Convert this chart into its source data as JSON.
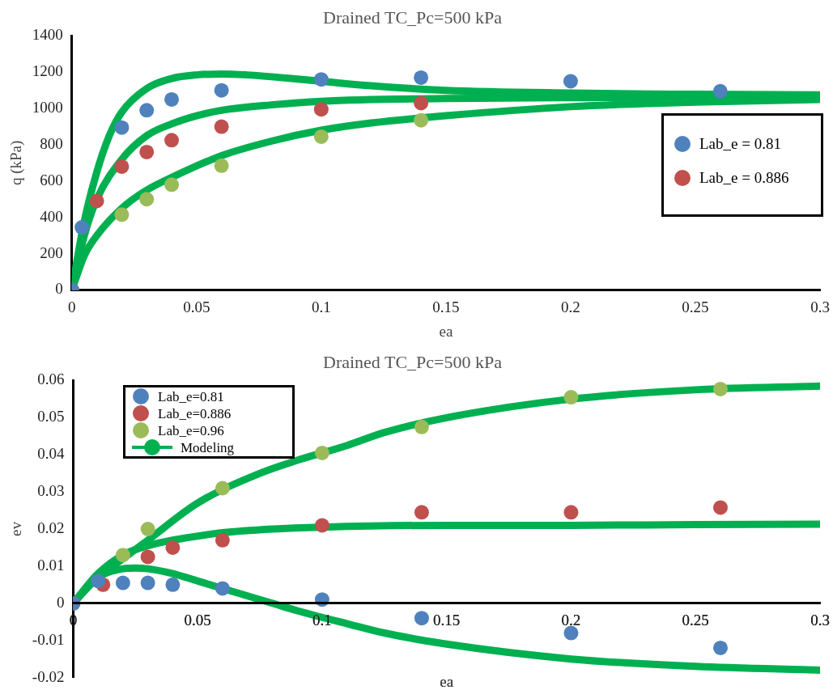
{
  "chart_data": [
    {
      "type": "scatter",
      "title": "Drained TC_Pc=500 kPa",
      "xlabel": "ea",
      "ylabel": "q (kPa)",
      "xlim": [
        0,
        0.3
      ],
      "xticks": [
        0,
        0.05,
        0.1,
        0.15,
        0.2,
        0.25,
        0.3
      ],
      "ylim": [
        0,
        1400
      ],
      "yticks": [
        0,
        200,
        400,
        600,
        800,
        1000,
        1200,
        1400
      ],
      "grid": false,
      "legend": "right",
      "marker": "circle",
      "series": [
        {
          "type": "line",
          "marker": "none",
          "color": "#00b050",
          "line_style": "solid",
          "x": [
            0,
            0.005,
            0.01,
            0.015,
            0.02,
            0.03,
            0.04,
            0.05,
            0.06,
            0.07,
            0.08,
            0.1,
            0.12,
            0.15,
            0.2,
            0.25,
            0.3
          ],
          "values": [
            0,
            380,
            650,
            850,
            980,
            1110,
            1165,
            1185,
            1190,
            1185,
            1175,
            1150,
            1125,
            1100,
            1085,
            1078,
            1075
          ]
        },
        {
          "type": "line",
          "marker": "none",
          "color": "#00b050",
          "line_style": "solid",
          "x": [
            0,
            0.005,
            0.01,
            0.02,
            0.03,
            0.04,
            0.05,
            0.06,
            0.08,
            0.1,
            0.15,
            0.2,
            0.25,
            0.3
          ],
          "values": [
            0,
            300,
            500,
            720,
            850,
            915,
            960,
            990,
            1020,
            1040,
            1055,
            1060,
            1063,
            1065
          ]
        },
        {
          "type": "line",
          "marker": "none",
          "color": "#00b050",
          "line_style": "solid",
          "x": [
            0,
            0.005,
            0.01,
            0.02,
            0.03,
            0.04,
            0.06,
            0.08,
            0.1,
            0.12,
            0.15,
            0.2,
            0.25,
            0.3
          ],
          "values": [
            0,
            190,
            300,
            450,
            550,
            620,
            740,
            820,
            880,
            920,
            960,
            1010,
            1035,
            1050
          ]
        },
        {
          "name": "Lab_e = 0.81",
          "color": "#4f81bd",
          "x": [
            0,
            0.004,
            0.02,
            0.03,
            0.04,
            0.06,
            0.1,
            0.14,
            0.2,
            0.26
          ],
          "values": [
            0,
            345,
            895,
            990,
            1050,
            1100,
            1160,
            1170,
            1150,
            1095
          ]
        },
        {
          "name": "Lab_e = 0.886",
          "color": "#c0504d",
          "x": [
            0,
            0.01,
            0.02,
            0.03,
            0.04,
            0.06,
            0.1,
            0.14
          ],
          "values": [
            0,
            490,
            680,
            760,
            825,
            900,
            995,
            1030
          ]
        },
        {
          "color": "#9bbb59",
          "x": [
            0,
            0.02,
            0.03,
            0.04,
            0.06,
            0.1,
            0.14
          ],
          "values": [
            0,
            415,
            500,
            580,
            685,
            845,
            935
          ]
        }
      ]
    },
    {
      "type": "scatter",
      "title": "Drained TC_Pc=500 kPa",
      "xlabel": "ea",
      "ylabel": "ev",
      "xlim": [
        0,
        0.3
      ],
      "xticks": [
        0,
        0.05,
        0.1,
        0.15,
        0.2,
        0.25,
        0.3
      ],
      "ylim": [
        -0.02,
        0.06
      ],
      "yticks": [
        -0.02,
        -0.01,
        0,
        0.01,
        0.02,
        0.03,
        0.04,
        0.05,
        0.06
      ],
      "grid": false,
      "legend": "top left",
      "marker": "circle",
      "series": [
        {
          "name": "Lab_e=0.81",
          "color": "#4f81bd",
          "x": [
            0,
            0.01,
            0.02,
            0.03,
            0.04,
            0.06,
            0.1,
            0.14,
            0.2,
            0.26
          ],
          "values": [
            0,
            0.006,
            0.0055,
            0.0055,
            0.005,
            0.004,
            0.001,
            -0.004,
            -0.008,
            -0.012
          ]
        },
        {
          "name": "Lab_e=0.886",
          "color": "#c0504d",
          "x": [
            0,
            0.012,
            0.03,
            0.04,
            0.06,
            0.1,
            0.14,
            0.2,
            0.26
          ],
          "values": [
            0,
            0.005,
            0.0125,
            0.015,
            0.017,
            0.021,
            0.0245,
            0.0245,
            0.0258
          ]
        },
        {
          "name": "Lab_e=0.96",
          "color": "#9bbb59",
          "x": [
            0,
            0.02,
            0.03,
            0.06,
            0.1,
            0.14,
            0.2,
            0.26
          ],
          "values": [
            0,
            0.013,
            0.02,
            0.031,
            0.0405,
            0.0475,
            0.0555,
            0.0577
          ]
        },
        {
          "type": "line",
          "marker": "none",
          "color": "#00b050",
          "line_style": "solid",
          "x": [
            0,
            0.01,
            0.02,
            0.03,
            0.05,
            0.075,
            0.09,
            0.11,
            0.125,
            0.15,
            0.2,
            0.25,
            0.3
          ],
          "values": [
            0,
            0.007,
            0.012,
            0.017,
            0.027,
            0.035,
            0.0385,
            0.0425,
            0.046,
            0.05,
            0.055,
            0.0575,
            0.0585
          ]
        },
        {
          "type": "line",
          "marker": "none",
          "color": "#00b050",
          "line_style": "solid",
          "x": [
            0,
            0.01,
            0.02,
            0.03,
            0.04,
            0.06,
            0.08,
            0.1,
            0.15,
            0.2,
            0.25,
            0.3
          ],
          "values": [
            0,
            0.008,
            0.013,
            0.0155,
            0.017,
            0.019,
            0.02,
            0.0205,
            0.021,
            0.021,
            0.0212,
            0.0213
          ]
        },
        {
          "name": "Modeling",
          "type": "line",
          "marker": "none",
          "color": "#00b050",
          "line_style": "solid",
          "x": [
            0,
            0.01,
            0.02,
            0.025,
            0.03,
            0.04,
            0.05,
            0.06,
            0.08,
            0.09,
            0.11,
            0.125,
            0.15,
            0.2,
            0.25,
            0.3
          ],
          "values": [
            0,
            0.007,
            0.0093,
            0.0095,
            0.0093,
            0.008,
            0.006,
            0.004,
            0,
            -0.002,
            -0.0055,
            -0.008,
            -0.011,
            -0.015,
            -0.017,
            -0.018
          ]
        }
      ]
    }
  ]
}
